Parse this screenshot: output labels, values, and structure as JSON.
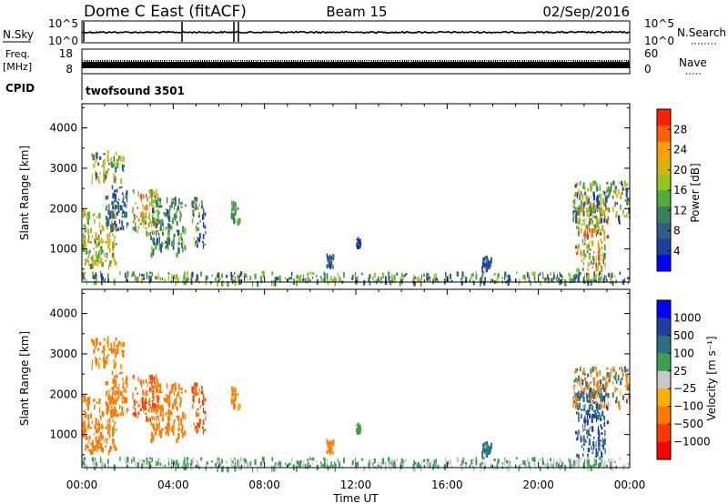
{
  "header": {
    "title": "Dome C East (fitACF)",
    "beam": "Beam 15",
    "date": "02/Sep/2016"
  },
  "nsky_panel": {
    "left_label": "N.Sky",
    "left_ticks": [
      "10^5",
      "10^0"
    ],
    "right_label": "N.Search",
    "right_ticks": [
      "10^5",
      "10^0"
    ],
    "right_legend_style": "dotted"
  },
  "freq_panel": {
    "left_label_line1": "Freq.",
    "left_label_line2": "[MHz]",
    "left_ticks": [
      "18",
      "8"
    ],
    "right_label": "Nave",
    "right_ticks": [
      "60",
      "0"
    ],
    "right_legend_style": "dotted"
  },
  "cpid_panel": {
    "label": "CPID",
    "mode_text": "twofsound 3501"
  },
  "x_axis": {
    "label": "Time UT",
    "tick_labels": [
      "00:00",
      "04:00",
      "08:00",
      "12:00",
      "16:00",
      "20:00",
      "00:00"
    ]
  },
  "colors": {
    "power_scale": [
      "#0000ff",
      "#1f3fa0",
      "#2e5f82",
      "#3a8060",
      "#4fae3a",
      "#98c41f",
      "#d6b40a",
      "#ff9f00",
      "#ff6000",
      "#ff2000"
    ],
    "velocity_scale": [
      "#0000ff",
      "#1f3fa0",
      "#2e6f80",
      "#3aa050",
      "#c8c8c8",
      "#ffb000",
      "#ff7a00",
      "#ff3a00",
      "#ff0000"
    ]
  },
  "chart_data": [
    {
      "type": "heatmap",
      "name": "power_panel",
      "ylabel": "Slant Range [km]",
      "yticks": [
        1000,
        2000,
        3000,
        4000
      ],
      "ylim": [
        180,
        4600
      ],
      "xlim": [
        0,
        24
      ],
      "xlabel": "Time UT",
      "colorbar": {
        "label": "Power [dB]",
        "ticks": [
          4,
          8,
          12,
          16,
          20,
          24,
          28
        ],
        "range": [
          0,
          32
        ]
      },
      "clusters": [
        {
          "t0": 0.0,
          "t1": 1.5,
          "r0": 600,
          "r1": 2000,
          "v0": 10,
          "v1": 26
        },
        {
          "t0": 0.4,
          "t1": 1.8,
          "r0": 2700,
          "r1": 3450,
          "v0": 6,
          "v1": 24
        },
        {
          "t0": 1.0,
          "t1": 2.0,
          "r0": 1500,
          "r1": 2600,
          "v0": 4,
          "v1": 14
        },
        {
          "t0": 2.2,
          "t1": 3.3,
          "r0": 1400,
          "r1": 2500,
          "v0": 10,
          "v1": 30
        },
        {
          "t0": 3.0,
          "t1": 4.5,
          "r0": 900,
          "r1": 2300,
          "v0": 4,
          "v1": 18
        },
        {
          "t0": 4.8,
          "t1": 5.4,
          "r0": 1100,
          "r1": 2300,
          "v0": 4,
          "v1": 20
        },
        {
          "t0": 6.5,
          "t1": 6.9,
          "r0": 1700,
          "r1": 2200,
          "v0": 8,
          "v1": 16
        },
        {
          "t0": 10.7,
          "t1": 11.0,
          "r0": 600,
          "r1": 900,
          "v0": 4,
          "v1": 10
        },
        {
          "t0": 12.0,
          "t1": 12.2,
          "r0": 1100,
          "r1": 1300,
          "v0": 2,
          "v1": 8
        },
        {
          "t0": 17.5,
          "t1": 17.9,
          "r0": 500,
          "r1": 850,
          "v0": 4,
          "v1": 10
        },
        {
          "t0": 21.6,
          "t1": 23.0,
          "r0": 500,
          "r1": 2200,
          "v0": 8,
          "v1": 32
        },
        {
          "t0": 21.5,
          "t1": 24.0,
          "r0": 1700,
          "r1": 2700,
          "v0": 4,
          "v1": 24
        },
        {
          "t0": 0.0,
          "t1": 24.0,
          "r0": 200,
          "r1": 450,
          "v0": 4,
          "v1": 20
        }
      ]
    },
    {
      "type": "heatmap",
      "name": "velocity_panel",
      "ylabel": "Slant Range [km]",
      "yticks": [
        1000,
        2000,
        3000,
        4000
      ],
      "ylim": [
        180,
        4600
      ],
      "xlim": [
        0,
        24
      ],
      "xlabel": "Time UT",
      "colorbar": {
        "label": "Velocity [m s⁻¹]",
        "ticks": [
          "1000",
          "500",
          "100",
          "25",
          "−25",
          "−100",
          "−500",
          "−1000"
        ]
      },
      "clusters": [
        {
          "t0": 0.0,
          "t1": 1.5,
          "r0": 600,
          "r1": 2000,
          "v0": -500,
          "v1": -100
        },
        {
          "t0": 0.4,
          "t1": 1.8,
          "r0": 2700,
          "r1": 3450,
          "v0": -500,
          "v1": -25
        },
        {
          "t0": 1.0,
          "t1": 2.0,
          "r0": 1500,
          "r1": 2600,
          "v0": -500,
          "v1": -100
        },
        {
          "t0": 2.2,
          "t1": 3.3,
          "r0": 1400,
          "r1": 2500,
          "v0": -1000,
          "v1": -100
        },
        {
          "t0": 3.0,
          "t1": 4.5,
          "r0": 900,
          "r1": 2300,
          "v0": -500,
          "v1": -100
        },
        {
          "t0": 4.8,
          "t1": 5.4,
          "r0": 1100,
          "r1": 2300,
          "v0": -1000,
          "v1": -100
        },
        {
          "t0": 6.5,
          "t1": 6.9,
          "r0": 1700,
          "r1": 2200,
          "v0": -500,
          "v1": 25
        },
        {
          "t0": 10.7,
          "t1": 11.0,
          "r0": 600,
          "r1": 900,
          "v0": -500,
          "v1": -100
        },
        {
          "t0": 12.0,
          "t1": 12.2,
          "r0": 1100,
          "r1": 1300,
          "v0": 25,
          "v1": 100
        },
        {
          "t0": 17.5,
          "t1": 17.9,
          "r0": 500,
          "r1": 850,
          "v0": 100,
          "v1": 500
        },
        {
          "t0": 21.6,
          "t1": 23.0,
          "r0": 500,
          "r1": 2200,
          "v0": 100,
          "v1": 1000
        },
        {
          "t0": 21.5,
          "t1": 24.0,
          "r0": 1700,
          "r1": 2700,
          "v0": -500,
          "v1": 500
        },
        {
          "t0": 0.0,
          "t1": 24.0,
          "r0": 200,
          "r1": 450,
          "v0": -25,
          "v1": 100
        }
      ]
    }
  ]
}
